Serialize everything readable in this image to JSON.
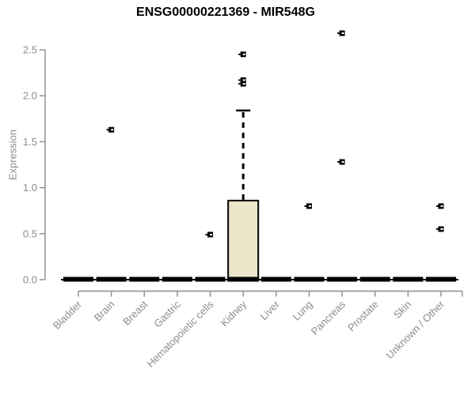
{
  "chart_data": {
    "type": "boxplot",
    "title": "ENSG00000221369 - MIR548G",
    "ylabel": "Expression",
    "xlabel": "",
    "ylim": [
      0,
      2.7
    ],
    "yticks": [
      0.0,
      0.5,
      1.0,
      1.5,
      2.0,
      2.5
    ],
    "grid": false,
    "legend": false,
    "categories": [
      "Bladder",
      "Brain",
      "Breast",
      "Gastric",
      "Hematopoietic cells",
      "Kidney",
      "Liver",
      "Lung",
      "Pancreas",
      "Prostate",
      "Skin",
      "Unknown / Other"
    ],
    "series": [
      {
        "category": "Bladder",
        "whisker_low": 0,
        "q1": 0,
        "median": 0,
        "q3": 0,
        "whisker_high": 0,
        "outliers": []
      },
      {
        "category": "Brain",
        "whisker_low": 0,
        "q1": 0,
        "median": 0,
        "q3": 0,
        "whisker_high": 0,
        "outliers": [
          1.63
        ]
      },
      {
        "category": "Breast",
        "whisker_low": 0,
        "q1": 0,
        "median": 0,
        "q3": 0,
        "whisker_high": 0,
        "outliers": []
      },
      {
        "category": "Gastric",
        "whisker_low": 0,
        "q1": 0,
        "median": 0,
        "q3": 0,
        "whisker_high": 0,
        "outliers": []
      },
      {
        "category": "Hematopoietic cells",
        "whisker_low": 0,
        "q1": 0,
        "median": 0,
        "q3": 0,
        "whisker_high": 0,
        "outliers": [
          0.49
        ]
      },
      {
        "category": "Kidney",
        "whisker_low": 0,
        "q1": 0,
        "median": 0,
        "q3": 0.86,
        "whisker_high": 1.84,
        "outliers": [
          2.13,
          2.17,
          2.45
        ]
      },
      {
        "category": "Liver",
        "whisker_low": 0,
        "q1": 0,
        "median": 0,
        "q3": 0,
        "whisker_high": 0,
        "outliers": []
      },
      {
        "category": "Lung",
        "whisker_low": 0,
        "q1": 0,
        "median": 0,
        "q3": 0,
        "whisker_high": 0,
        "outliers": [
          0.8
        ]
      },
      {
        "category": "Pancreas",
        "whisker_low": 0,
        "q1": 0,
        "median": 0,
        "q3": 0,
        "whisker_high": 0,
        "outliers": [
          1.28,
          2.68
        ]
      },
      {
        "category": "Prostate",
        "whisker_low": 0,
        "q1": 0,
        "median": 0,
        "q3": 0,
        "whisker_high": 0,
        "outliers": []
      },
      {
        "category": "Skin",
        "whisker_low": 0,
        "q1": 0,
        "median": 0,
        "q3": 0,
        "whisker_high": 0,
        "outliers": []
      },
      {
        "category": "Unknown / Other",
        "whisker_low": 0,
        "q1": 0,
        "median": 0,
        "q3": 0,
        "whisker_high": 0,
        "outliers": [
          0.55,
          0.8
        ]
      }
    ],
    "colors": {
      "box_fill": "#ebe5ca",
      "box_border": "#000000",
      "median": "#000000",
      "whisker": "#000000",
      "outlier": "#000000",
      "axis": "#8c8c8c",
      "tick_label": "#8c8c8c",
      "title": "#000000",
      "background": "#ffffff"
    }
  }
}
